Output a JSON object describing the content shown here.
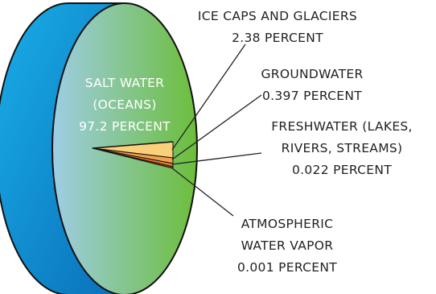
{
  "chart_data": {
    "type": "pie",
    "style": "3d-disc",
    "slices": [
      {
        "name": "SALT WATER (OCEANS)",
        "value": 97.2,
        "unit": "PERCENT",
        "color": "#7dc243",
        "label_lines": [
          "SALT WATER",
          "(OCEANS)",
          "97.2 PERCENT"
        ]
      },
      {
        "name": "ICE CAPS AND GLACIERS",
        "value": 2.38,
        "unit": "PERCENT",
        "color": "#fbd07a",
        "label_lines": [
          "ICE CAPS AND GLACIERS",
          "2.38 PERCENT"
        ]
      },
      {
        "name": "GROUNDWATER",
        "value": 0.397,
        "unit": "PERCENT",
        "color": "#f2a14a",
        "label_lines": [
          "GROUNDWATER",
          "0.397 PERCENT"
        ]
      },
      {
        "name": "FRESHWATER (LAKES, RIVERS, STREAMS)",
        "value": 0.022,
        "unit": "PERCENT",
        "color": "#e47b32",
        "label_lines": [
          "FRESHWATER (LAKES,",
          "RIVERS, STREAMS)",
          "0.022 PERCENT"
        ]
      },
      {
        "name": "ATMOSPHERIC WATER VAPOR",
        "value": 0.001,
        "unit": "PERCENT",
        "color": "#c4452a",
        "label_lines": [
          "ATMOSPHERIC",
          "WATER VAPOR",
          "0.001 PERCENT"
        ]
      }
    ],
    "colors": {
      "face_left": "#9ecde6",
      "face_right": "#6cbe3a",
      "rim_light": "#19aee8",
      "rim_dark": "#0a6fb8",
      "outline": "#111111"
    }
  }
}
